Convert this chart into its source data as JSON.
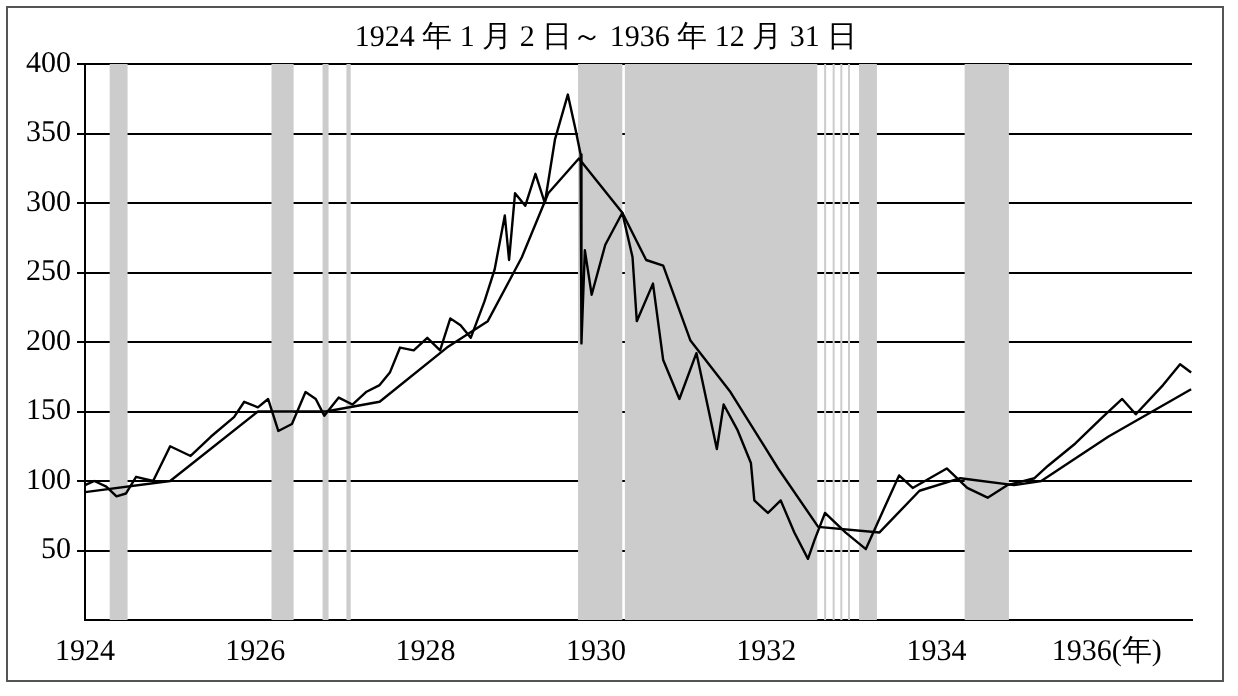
{
  "chart_data": {
    "type": "line",
    "title": "1924 年 1 月 2 日～ 1936 年 12 月 31 日",
    "xlim": [
      1924,
      1937
    ],
    "xticks": [
      1924,
      1926,
      1928,
      1930,
      1932,
      1934,
      {
        "value": 1936,
        "label": "1936(年)"
      }
    ],
    "ylim": [
      0,
      400
    ],
    "yticks": [
      50,
      100,
      150,
      200,
      250,
      300,
      350,
      400
    ],
    "grid": "y",
    "legend": false,
    "marker": "none",
    "line_style": "solid",
    "series": [
      {
        "color": "#000000",
        "x": [
          1924.0,
          1924.11,
          1924.25,
          1924.37,
          1924.48,
          1924.6,
          1924.8,
          1925.0,
          1925.24,
          1925.48,
          1925.75,
          1925.87,
          1926.03,
          1926.15,
          1926.27,
          1926.43,
          1926.59,
          1926.71,
          1926.81,
          1926.98,
          1927.14,
          1927.3,
          1927.46,
          1927.58,
          1927.7,
          1927.86,
          1928.02,
          1928.17,
          1928.29,
          1928.41,
          1928.53,
          1928.69,
          1928.81,
          1928.93,
          1928.98,
          1929.05,
          1929.17,
          1929.29,
          1929.4,
          1929.52,
          1929.67,
          1929.76,
          1929.82,
          1929.83,
          1929.87,
          1929.95,
          1930.11,
          1930.31,
          1930.43,
          1930.48,
          1930.67,
          1930.79,
          1930.98,
          1931.18,
          1931.42,
          1931.5,
          1931.66,
          1931.82,
          1931.86,
          1932.02,
          1932.17,
          1932.33,
          1932.49,
          1932.57,
          1932.69,
          1932.93,
          1933.17,
          1933.36,
          1933.56,
          1933.72,
          1934.12,
          1934.36,
          1934.6,
          1934.83,
          1935.15,
          1935.31,
          1935.63,
          1935.95,
          1936.18,
          1936.34,
          1936.66,
          1936.86,
          1936.99
        ],
        "values": [
          97,
          100,
          96,
          89,
          91,
          103,
          100,
          125,
          118,
          132,
          146,
          157,
          153,
          159,
          136,
          141,
          164,
          159,
          147,
          160,
          155,
          164,
          169,
          178,
          196,
          194,
          203,
          194,
          217,
          212,
          203,
          229,
          252,
          291,
          259,
          307,
          298,
          321,
          300,
          346,
          378,
          353,
          335,
          199,
          266,
          234,
          270,
          293,
          261,
          215,
          242,
          187,
          159,
          192,
          123,
          155,
          137,
          113,
          86,
          77,
          86,
          63,
          44,
          58,
          77,
          63,
          51,
          77,
          104,
          95,
          109,
          95,
          88,
          97,
          102,
          111,
          127,
          146,
          159,
          148,
          169,
          184,
          178
        ]
      },
      {
        "color": "#000000",
        "x": [
          1924.0,
          1925.0,
          1926.03,
          1926.83,
          1927.46,
          1928.25,
          1928.73,
          1929.13,
          1929.44,
          1929.8,
          1930.31,
          1930.59,
          1930.79,
          1931.11,
          1931.58,
          1932.14,
          1932.61,
          1933.33,
          1933.8,
          1934.28,
          1934.91,
          1935.23,
          1936.02,
          1936.99
        ],
        "values": [
          92,
          100,
          150,
          150,
          157,
          196,
          215,
          261,
          307,
          332,
          293,
          259,
          255,
          201,
          164,
          109,
          67,
          63,
          93,
          102,
          97,
          100,
          132,
          166
        ]
      }
    ],
    "bands": [
      {
        "axis": "x",
        "from": 1924.29,
        "to": 1924.5,
        "color": "#cccccc"
      },
      {
        "axis": "x",
        "from": 1926.19,
        "to": 1926.45,
        "color": "#cccccc"
      },
      {
        "axis": "x",
        "from": 1926.79,
        "to": 1926.86,
        "color": "#cccccc"
      },
      {
        "axis": "x",
        "from": 1927.07,
        "to": 1927.12,
        "color": "#cccccc"
      },
      {
        "axis": "x",
        "from": 1929.79,
        "to": 1930.31,
        "color": "#cccccc"
      },
      {
        "axis": "x",
        "from": 1930.34,
        "to": 1932.6,
        "color": "#cccccc"
      },
      {
        "axis": "x",
        "from": 1932.68,
        "to": 1932.7,
        "color": "#cccccc"
      },
      {
        "axis": "x",
        "from": 1932.78,
        "to": 1932.8,
        "color": "#cccccc"
      },
      {
        "axis": "x",
        "from": 1932.87,
        "to": 1932.89,
        "color": "#cccccc"
      },
      {
        "axis": "x",
        "from": 1932.96,
        "to": 1932.98,
        "color": "#cccccc"
      },
      {
        "axis": "x",
        "from": 1933.09,
        "to": 1933.3,
        "color": "#cccccc"
      },
      {
        "axis": "x",
        "from": 1934.33,
        "to": 1934.85,
        "color": "#cccccc"
      }
    ]
  }
}
